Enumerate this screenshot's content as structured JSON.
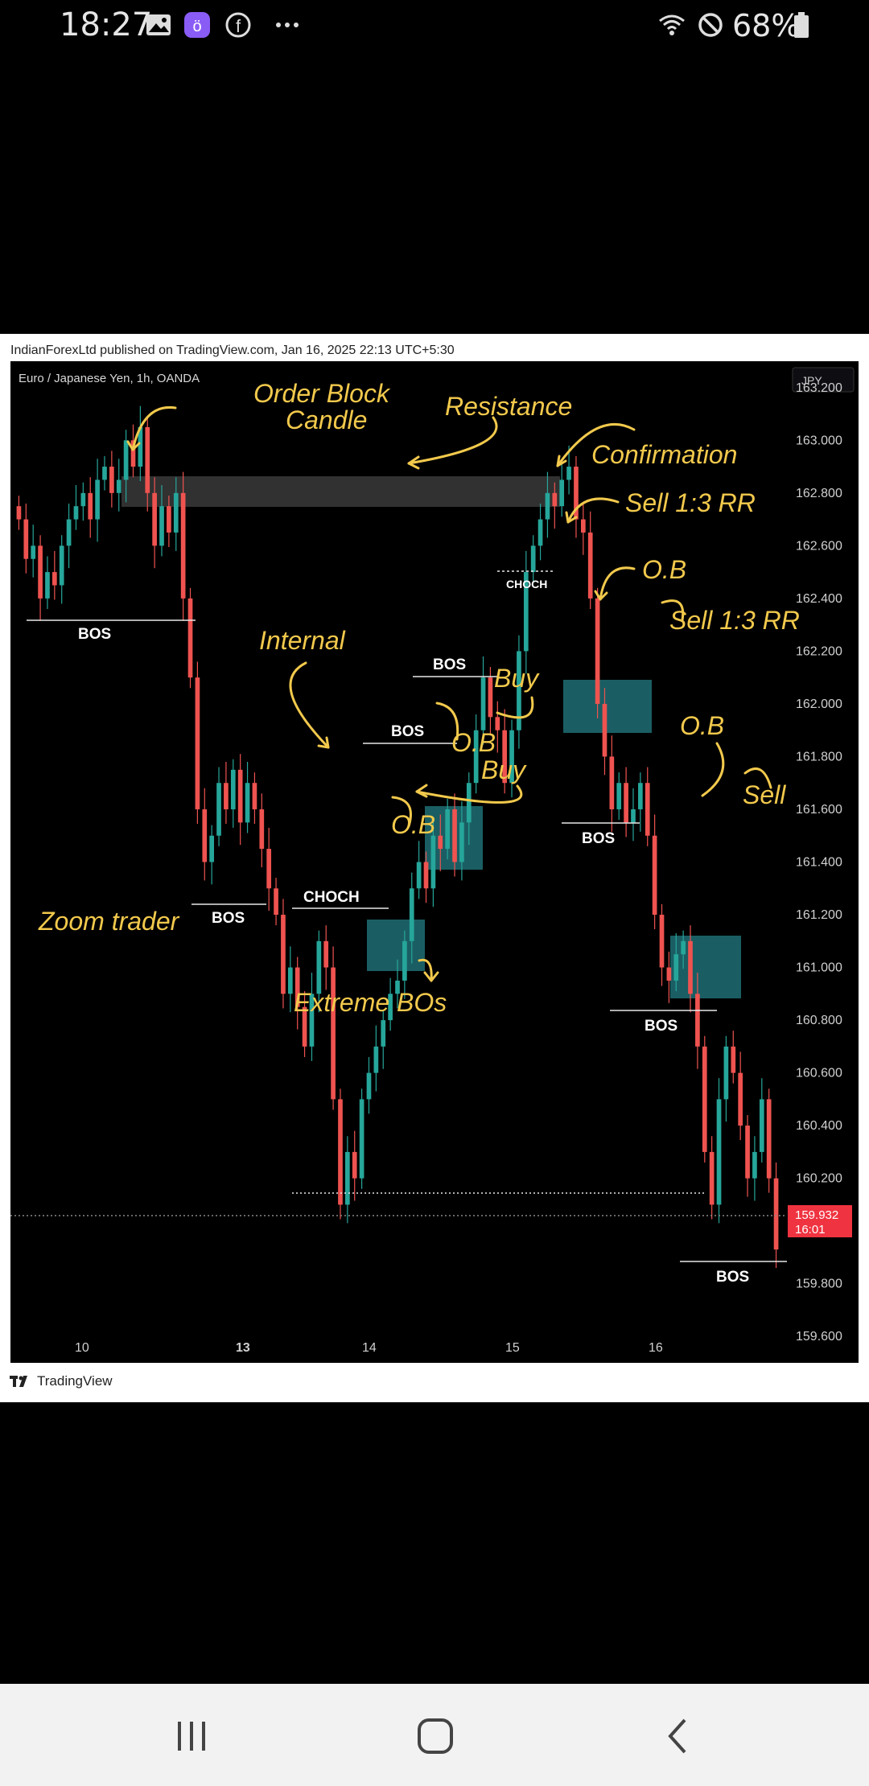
{
  "status_bar": {
    "time": "18:27",
    "battery": "68%",
    "icons": [
      "gallery-icon",
      "app-icon",
      "facebook-icon",
      "more-icon",
      "wifi-icon",
      "do-not-disturb-icon",
      "battery-icon"
    ]
  },
  "publish_line": "IndianForexLtd published on TradingView.com, Jan 16, 2025 22:13 UTC+5:30",
  "footer_brand": "TradingView",
  "chart_data": {
    "type": "candlestick",
    "symbol": "Euro / Japanese Yen, 1h, OANDA",
    "currency_button": "JPY",
    "ylim": [
      159.5,
      163.3
    ],
    "y_ticks": [
      "163.200",
      "163.000",
      "162.800",
      "162.600",
      "162.400",
      "162.200",
      "162.000",
      "161.800",
      "161.600",
      "161.400",
      "161.200",
      "161.000",
      "160.800",
      "160.600",
      "160.400",
      "160.200",
      "160.000",
      "159.800",
      "159.600"
    ],
    "x_ticks": [
      "10",
      "13",
      "14",
      "15",
      "16"
    ],
    "last_price": "159.932",
    "last_time": "16:01",
    "colors": {
      "up": "#26a69a",
      "down": "#ef5350",
      "annotation": "#f2c94c",
      "zone": "#1f6f74"
    },
    "candles_close": [
      162.7,
      162.55,
      162.6,
      162.4,
      162.5,
      162.45,
      162.6,
      162.7,
      162.75,
      162.8,
      162.7,
      162.85,
      162.9,
      162.8,
      162.85,
      163.0,
      162.9,
      163.05,
      162.8,
      162.6,
      162.75,
      162.65,
      162.8,
      162.4,
      162.1,
      161.6,
      161.4,
      161.5,
      161.7,
      161.6,
      161.75,
      161.55,
      161.7,
      161.6,
      161.45,
      161.3,
      161.2,
      160.9,
      161.0,
      160.85,
      160.7,
      160.9,
      161.1,
      161.0,
      160.5,
      160.1,
      160.3,
      160.2,
      160.5,
      160.6,
      160.7,
      160.8,
      160.9,
      160.95,
      161.1,
      161.3,
      161.4,
      161.3,
      161.5,
      161.45,
      161.6,
      161.4,
      161.55,
      161.7,
      161.9,
      162.1,
      161.95,
      161.9,
      161.7,
      161.9,
      162.2,
      162.5,
      162.6,
      162.7,
      162.8,
      162.75,
      162.85,
      162.9,
      162.7,
      162.65,
      162.4,
      162.0,
      161.8,
      161.6,
      161.7,
      161.55,
      161.6,
      161.7,
      161.5,
      161.2,
      161.0,
      160.95,
      161.05,
      161.1,
      160.9,
      160.7,
      160.3,
      160.1,
      160.5,
      160.7,
      160.6,
      160.4,
      160.2,
      160.3,
      160.5,
      160.2,
      159.93
    ]
  },
  "annotations": {
    "order_block_line1": "Order Block",
    "order_block_line2": "Candle",
    "resistance": "Resistance",
    "confirmation": "Confirmation",
    "sell_rr_1": "Sell 1:3 RR",
    "ob_1": "O.B",
    "sell_rr_2": "Sell 1:3 RR",
    "internal": "Internal",
    "buy_1": "Buy",
    "ob_2": "O.B",
    "buy_2": "Buy",
    "ob_3": "O.B",
    "ob_4": "O.B",
    "sell": "Sell",
    "zoom_trader": "Zoom trader",
    "extreme_bos": "Extreme BOs",
    "bos_1": "BOS",
    "bos_2": "BOS",
    "bos_3": "BOS",
    "bos_4": "BOS",
    "bos_5": "BOS",
    "bos_6": "BOS",
    "bos_7": "BOS",
    "choch_1": "CHOCH",
    "choch_2": "CHOCH"
  }
}
